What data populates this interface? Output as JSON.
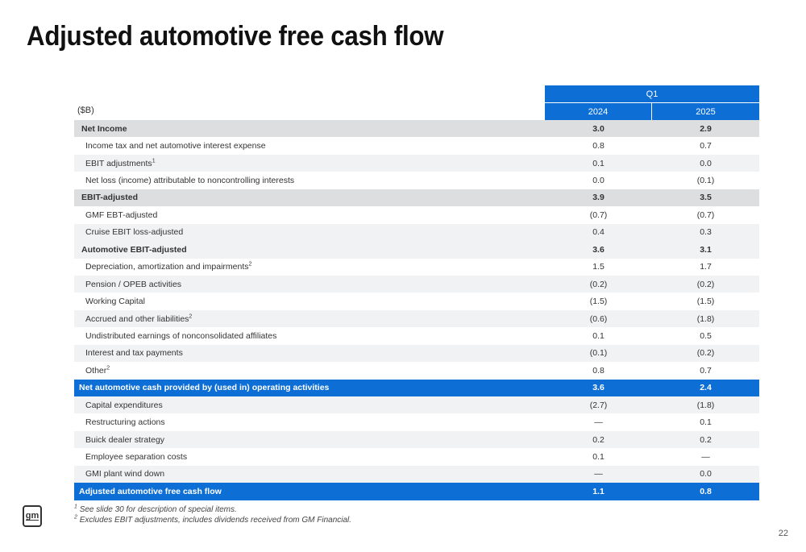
{
  "title": "Adjusted automotive free cash flow",
  "table": {
    "unit_label": "($B)",
    "period_header": "Q1",
    "years": [
      "2024",
      "2025"
    ],
    "rows": [
      {
        "label": "Net Income",
        "sup": "",
        "v2024": "3.0",
        "v2025": "2.9",
        "style": "total"
      },
      {
        "label": "Income tax and net automotive interest expense",
        "sup": "",
        "v2024": "0.8",
        "v2025": "0.7",
        "style": "plain"
      },
      {
        "label": "EBIT adjustments",
        "sup": "1",
        "v2024": "0.1",
        "v2025": "0.0",
        "style": "shade"
      },
      {
        "label": "Net loss (income) attributable to noncontrolling interests",
        "sup": "",
        "v2024": "0.0",
        "v2025": "(0.1)",
        "style": "plain"
      },
      {
        "label": "EBIT-adjusted",
        "sup": "",
        "v2024": "3.9",
        "v2025": "3.5",
        "style": "total"
      },
      {
        "label": "GMF EBT-adjusted",
        "sup": "",
        "v2024": "(0.7)",
        "v2025": "(0.7)",
        "style": "plain"
      },
      {
        "label": "Cruise EBIT loss-adjusted",
        "sup": "",
        "v2024": "0.4",
        "v2025": "0.3",
        "style": "shade"
      },
      {
        "label": "Automotive EBIT-adjusted",
        "sup": "",
        "v2024": "3.6",
        "v2025": "3.1",
        "style": "sub"
      },
      {
        "label": "Depreciation, amortization and impairments",
        "sup": "2",
        "v2024": "1.5",
        "v2025": "1.7",
        "style": "plain"
      },
      {
        "label": "Pension / OPEB activities",
        "sup": "",
        "v2024": "(0.2)",
        "v2025": "(0.2)",
        "style": "shade"
      },
      {
        "label": "Working Capital",
        "sup": "",
        "v2024": "(1.5)",
        "v2025": "(1.5)",
        "style": "plain"
      },
      {
        "label": "Accrued and other liabilities",
        "sup": "2",
        "v2024": "(0.6)",
        "v2025": "(1.8)",
        "style": "shade"
      },
      {
        "label": "Undistributed earnings of nonconsolidated affiliates",
        "sup": "",
        "v2024": "0.1",
        "v2025": "0.5",
        "style": "plain"
      },
      {
        "label": "Interest and tax payments",
        "sup": "",
        "v2024": "(0.1)",
        "v2025": "(0.2)",
        "style": "shade"
      },
      {
        "label": "Other",
        "sup": "2",
        "v2024": "0.8",
        "v2025": "0.7",
        "style": "plain"
      },
      {
        "label": "Net automotive cash provided by (used in) operating activities",
        "sup": "",
        "v2024": "3.6",
        "v2025": "2.4",
        "style": "blue"
      },
      {
        "label": "Capital expenditures",
        "sup": "",
        "v2024": "(2.7)",
        "v2025": "(1.8)",
        "style": "shade"
      },
      {
        "label": "Restructuring actions",
        "sup": "",
        "v2024": "—",
        "v2025": "0.1",
        "style": "plain"
      },
      {
        "label": "Buick dealer strategy",
        "sup": "",
        "v2024": "0.2",
        "v2025": "0.2",
        "style": "shade"
      },
      {
        "label": "Employee separation costs",
        "sup": "",
        "v2024": "0.1",
        "v2025": "—",
        "style": "plain"
      },
      {
        "label": "GMI plant wind down",
        "sup": "",
        "v2024": "—",
        "v2025": "0.0",
        "style": "shade"
      },
      {
        "label": "Adjusted automotive free cash flow",
        "sup": "",
        "v2024": "1.1",
        "v2025": "0.8",
        "style": "blue"
      }
    ]
  },
  "footnotes": [
    {
      "mark": "1",
      "text": "See slide 30 for description of special items."
    },
    {
      "mark": "2",
      "text": "Excludes EBIT adjustments, includes dividends received from GM Financial."
    }
  ],
  "logo_text": "gm",
  "page_number": "22",
  "colors": {
    "accent": "#0d6fd6",
    "shade": "#f0f2f4",
    "total": "#dcdee0"
  }
}
